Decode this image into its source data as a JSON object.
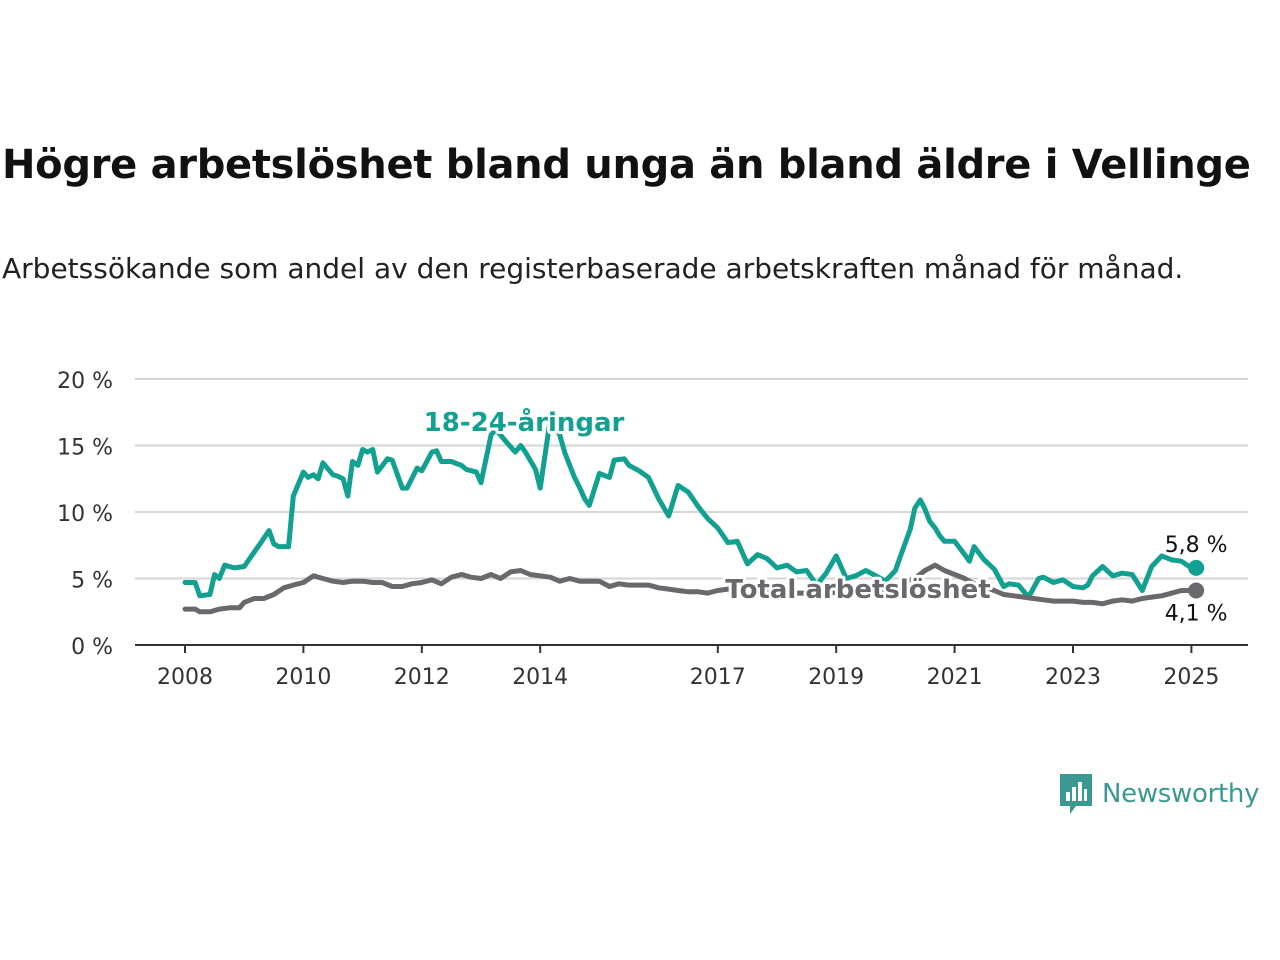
{
  "title": "Högre arbetslöshet bland unga än bland äldre i Vellinge",
  "subtitle": "Arbetssökande som andel av den registerbaserade arbetskraften månad för månad.",
  "brand": {
    "name": "Newsworthy",
    "icon": "newsworthy-logo-icon",
    "color": "#3a9a91"
  },
  "chart_data": {
    "type": "line",
    "y_ticks": [
      "0 %",
      "5 %",
      "10 %",
      "15 %",
      "20 %"
    ],
    "y_tick_values": [
      0,
      5,
      10,
      15,
      20
    ],
    "ylim": [
      0,
      20
    ],
    "xlim": [
      2007.75,
      2026.0
    ],
    "x_ticks": [
      "2008",
      "2010",
      "2012",
      "2014",
      "2017",
      "2019",
      "2021",
      "2023",
      "2025"
    ],
    "x_tick_values": [
      2008,
      2010,
      2012,
      2014,
      2017,
      2019,
      2021,
      2023,
      2025
    ],
    "grid": true,
    "series": [
      {
        "name": "18-24-åringar",
        "color": "#12a191",
        "end_label": "5,8 %",
        "x": [
          2008.0,
          2008.17,
          2008.25,
          2008.42,
          2008.5,
          2008.58,
          2008.67,
          2008.83,
          2009.0,
          2009.17,
          2009.25,
          2009.42,
          2009.5,
          2009.58,
          2009.75,
          2009.83,
          2010.0,
          2010.08,
          2010.17,
          2010.25,
          2010.33,
          2010.5,
          2010.58,
          2010.67,
          2010.75,
          2010.83,
          2010.92,
          2011.0,
          2011.08,
          2011.17,
          2011.25,
          2011.42,
          2011.5,
          2011.67,
          2011.75,
          2011.92,
          2012.0,
          2012.17,
          2012.25,
          2012.33,
          2012.42,
          2012.5,
          2012.67,
          2012.75,
          2012.92,
          2013.0,
          2013.17,
          2013.25,
          2013.33,
          2013.42,
          2013.58,
          2013.67,
          2013.75,
          2013.92,
          2014.0,
          2014.17,
          2014.25,
          2014.33,
          2014.42,
          2014.58,
          2014.67,
          2014.75,
          2014.83,
          2015.0,
          2015.17,
          2015.25,
          2015.42,
          2015.5,
          2015.67,
          2015.83,
          2016.0,
          2016.17,
          2016.33,
          2016.5,
          2016.67,
          2016.83,
          2017.0,
          2017.17,
          2017.33,
          2017.5,
          2017.67,
          2017.83,
          2018.0,
          2018.17,
          2018.33,
          2018.5,
          2018.67,
          2018.83,
          2019.0,
          2019.17,
          2019.33,
          2019.5,
          2019.67,
          2019.83,
          2020.0,
          2020.08,
          2020.25,
          2020.33,
          2020.42,
          2020.5,
          2020.58,
          2020.67,
          2020.75,
          2020.83,
          2021.0,
          2021.17,
          2021.25,
          2021.33,
          2021.5,
          2021.67,
          2021.83,
          2021.92,
          2022.08,
          2022.25,
          2022.42,
          2022.5,
          2022.67,
          2022.83,
          2023.0,
          2023.17,
          2023.25,
          2023.33,
          2023.5,
          2023.67,
          2023.83,
          2024.0,
          2024.17,
          2024.33,
          2024.5,
          2024.67,
          2024.83,
          2025.0,
          2025.08
        ],
        "y": [
          4.7,
          4.7,
          3.7,
          3.8,
          5.3,
          5.0,
          6.0,
          5.8,
          5.9,
          7.0,
          7.5,
          8.6,
          7.6,
          7.4,
          7.4,
          11.2,
          13.0,
          12.6,
          12.8,
          12.5,
          13.7,
          12.8,
          12.7,
          12.5,
          11.2,
          13.8,
          13.5,
          14.7,
          14.5,
          14.7,
          13.0,
          14.0,
          13.9,
          11.8,
          11.8,
          13.3,
          13.1,
          14.5,
          14.6,
          13.8,
          13.8,
          13.8,
          13.5,
          13.2,
          13.0,
          12.2,
          15.8,
          16.2,
          15.8,
          15.3,
          14.5,
          15.0,
          14.5,
          13.2,
          11.8,
          17.0,
          16.5,
          15.8,
          14.4,
          12.6,
          11.8,
          11.0,
          10.5,
          12.9,
          12.6,
          13.9,
          14.0,
          13.5,
          13.1,
          12.6,
          11.0,
          9.7,
          12.0,
          11.5,
          10.4,
          9.5,
          8.8,
          7.7,
          7.8,
          6.1,
          6.8,
          6.5,
          5.8,
          6.0,
          5.5,
          5.6,
          4.5,
          5.4,
          6.7,
          5.0,
          5.2,
          5.6,
          5.2,
          4.8,
          5.6,
          6.6,
          8.7,
          10.3,
          10.9,
          10.2,
          9.3,
          8.8,
          8.2,
          7.8,
          7.8,
          6.8,
          6.3,
          7.4,
          6.4,
          5.7,
          4.4,
          4.6,
          4.5,
          3.6,
          5.0,
          5.1,
          4.7,
          4.9,
          4.4,
          4.3,
          4.5,
          5.2,
          5.9,
          5.2,
          5.4,
          5.3,
          4.1,
          5.9,
          6.7,
          6.4,
          6.3,
          5.8,
          5.8
        ]
      },
      {
        "name": "Total arbetslöshet",
        "color": "#68686d",
        "end_label": "4,1 %",
        "x": [
          2008.0,
          2008.17,
          2008.25,
          2008.42,
          2008.58,
          2008.75,
          2008.92,
          2009.0,
          2009.17,
          2009.33,
          2009.5,
          2009.67,
          2009.83,
          2010.0,
          2010.17,
          2010.33,
          2010.5,
          2010.67,
          2010.83,
          2011.0,
          2011.17,
          2011.33,
          2011.5,
          2011.67,
          2011.83,
          2012.0,
          2012.17,
          2012.33,
          2012.5,
          2012.67,
          2012.83,
          2013.0,
          2013.17,
          2013.33,
          2013.5,
          2013.67,
          2013.83,
          2014.0,
          2014.17,
          2014.33,
          2014.5,
          2014.67,
          2014.83,
          2015.0,
          2015.17,
          2015.33,
          2015.5,
          2015.67,
          2015.83,
          2016.0,
          2016.17,
          2016.33,
          2016.5,
          2016.67,
          2016.83,
          2017.0,
          2017.17,
          2017.33,
          2017.5,
          2017.67,
          2017.83,
          2018.0,
          2018.17,
          2018.33,
          2018.5,
          2018.67,
          2018.83,
          2019.0,
          2019.17,
          2019.33,
          2019.5,
          2019.67,
          2019.83,
          2020.0,
          2020.17,
          2020.33,
          2020.5,
          2020.67,
          2020.83,
          2021.0,
          2021.17,
          2021.33,
          2021.5,
          2021.67,
          2021.83,
          2022.0,
          2022.17,
          2022.33,
          2022.5,
          2022.67,
          2022.83,
          2023.0,
          2023.17,
          2023.33,
          2023.5,
          2023.67,
          2023.83,
          2024.0,
          2024.17,
          2024.33,
          2024.5,
          2024.67,
          2024.83,
          2025.0,
          2025.08
        ],
        "y": [
          2.7,
          2.7,
          2.5,
          2.5,
          2.7,
          2.8,
          2.8,
          3.2,
          3.5,
          3.5,
          3.8,
          4.3,
          4.5,
          4.7,
          5.2,
          5.0,
          4.8,
          4.7,
          4.8,
          4.8,
          4.7,
          4.7,
          4.4,
          4.4,
          4.6,
          4.7,
          4.9,
          4.6,
          5.1,
          5.3,
          5.1,
          5.0,
          5.3,
          5.0,
          5.5,
          5.6,
          5.3,
          5.2,
          5.1,
          4.8,
          5.0,
          4.8,
          4.8,
          4.8,
          4.4,
          4.6,
          4.5,
          4.5,
          4.5,
          4.3,
          4.2,
          4.1,
          4.0,
          4.0,
          3.9,
          4.1,
          4.2,
          4.1,
          4.0,
          4.0,
          3.9,
          4.0,
          4.0,
          3.9,
          3.9,
          3.8,
          3.8,
          4.0,
          3.9,
          3.9,
          4.0,
          4.1,
          4.0,
          4.3,
          4.8,
          5.0,
          5.6,
          6.0,
          5.6,
          5.3,
          5.0,
          4.6,
          4.4,
          4.1,
          3.8,
          3.7,
          3.6,
          3.5,
          3.4,
          3.3,
          3.3,
          3.3,
          3.2,
          3.2,
          3.1,
          3.3,
          3.4,
          3.3,
          3.5,
          3.6,
          3.7,
          3.9,
          4.1,
          4.1,
          4.1
        ]
      }
    ]
  }
}
